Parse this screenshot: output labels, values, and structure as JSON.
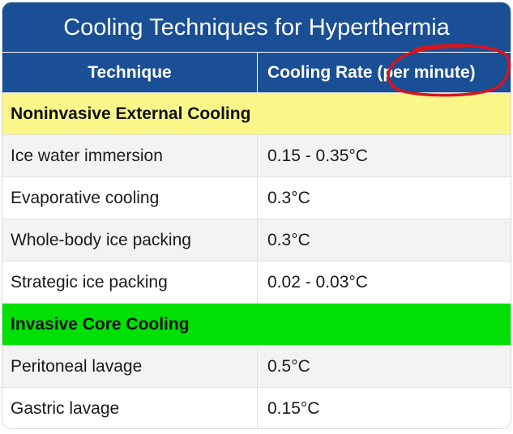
{
  "table": {
    "title": "Cooling Techniques for Hyperthermia",
    "headers": {
      "technique": "Technique",
      "rate": "Cooling Rate (per minute)"
    },
    "sections": [
      {
        "label": "Noninvasive External Cooling",
        "color": "#fbf68a",
        "rows": [
          {
            "technique": "Ice water immersion",
            "rate": "0.15 - 0.35°C"
          },
          {
            "technique": "Evaporative cooling",
            "rate": "0.3°C"
          },
          {
            "technique": "Whole-body ice packing",
            "rate": "0.3°C"
          },
          {
            "technique": "Strategic ice packing",
            "rate": "0.02 - 0.03°C"
          }
        ]
      },
      {
        "label": "Invasive Core Cooling",
        "color": "#00e005",
        "rows": [
          {
            "technique": "Peritoneal lavage",
            "rate": "0.5°C"
          },
          {
            "technique": "Gastric lavage",
            "rate": "0.15°C"
          }
        ]
      }
    ]
  },
  "colors": {
    "header_blue": "#1a4f95",
    "annotation_red": "#d8141c"
  }
}
